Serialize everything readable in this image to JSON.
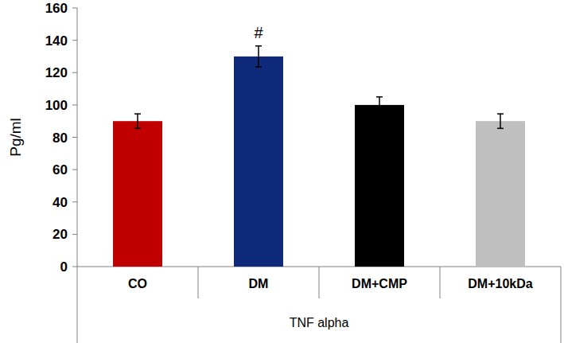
{
  "chart_data": {
    "type": "bar",
    "ylabel": "Pg/ml",
    "xlabel": "TNF alpha",
    "categories": [
      "CO",
      "DM",
      "DM+CMP",
      "DM+10kDa"
    ],
    "values": [
      90,
      130,
      100,
      90
    ],
    "errors": [
      4.5,
      6.5,
      5,
      4.5
    ],
    "colors": [
      "#c00000",
      "#0f2a7a",
      "#000000",
      "#bfbfbf"
    ],
    "annotations": [
      {
        "category": "DM",
        "text": "#"
      }
    ],
    "ylim": [
      0,
      160
    ],
    "yticks": [
      0,
      20,
      40,
      60,
      80,
      100,
      120,
      140,
      160
    ],
    "grid": false
  }
}
